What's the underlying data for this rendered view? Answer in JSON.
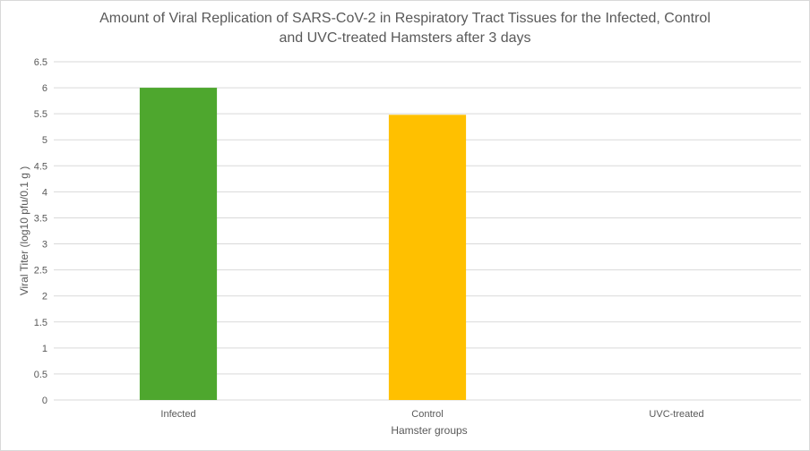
{
  "chart_data": {
    "type": "bar",
    "title_lines": [
      "Amount of Viral Replication of SARS-CoV-2 in Respiratory Tract Tissues for the Infected, Control",
      "and UVC-treated Hamsters after 3 days"
    ],
    "categories": [
      "Infected",
      "Control",
      "UVC-treated"
    ],
    "values": [
      6,
      5.48,
      0
    ],
    "colors": [
      "#4ea72e",
      "#ffc000",
      "#a5a5a5"
    ],
    "xlabel": "Hamster groups",
    "ylabel": "Viral Titer (log10 pfu/0.1 g )",
    "ylim": [
      0,
      6.5
    ],
    "yticks": [
      "0",
      "0.5",
      "1",
      "1.5",
      "2",
      "2.5",
      "3",
      "3.5",
      "4",
      "4.5",
      "5",
      "5.5",
      "6",
      "6.5"
    ],
    "grid": true,
    "legend": "none"
  }
}
